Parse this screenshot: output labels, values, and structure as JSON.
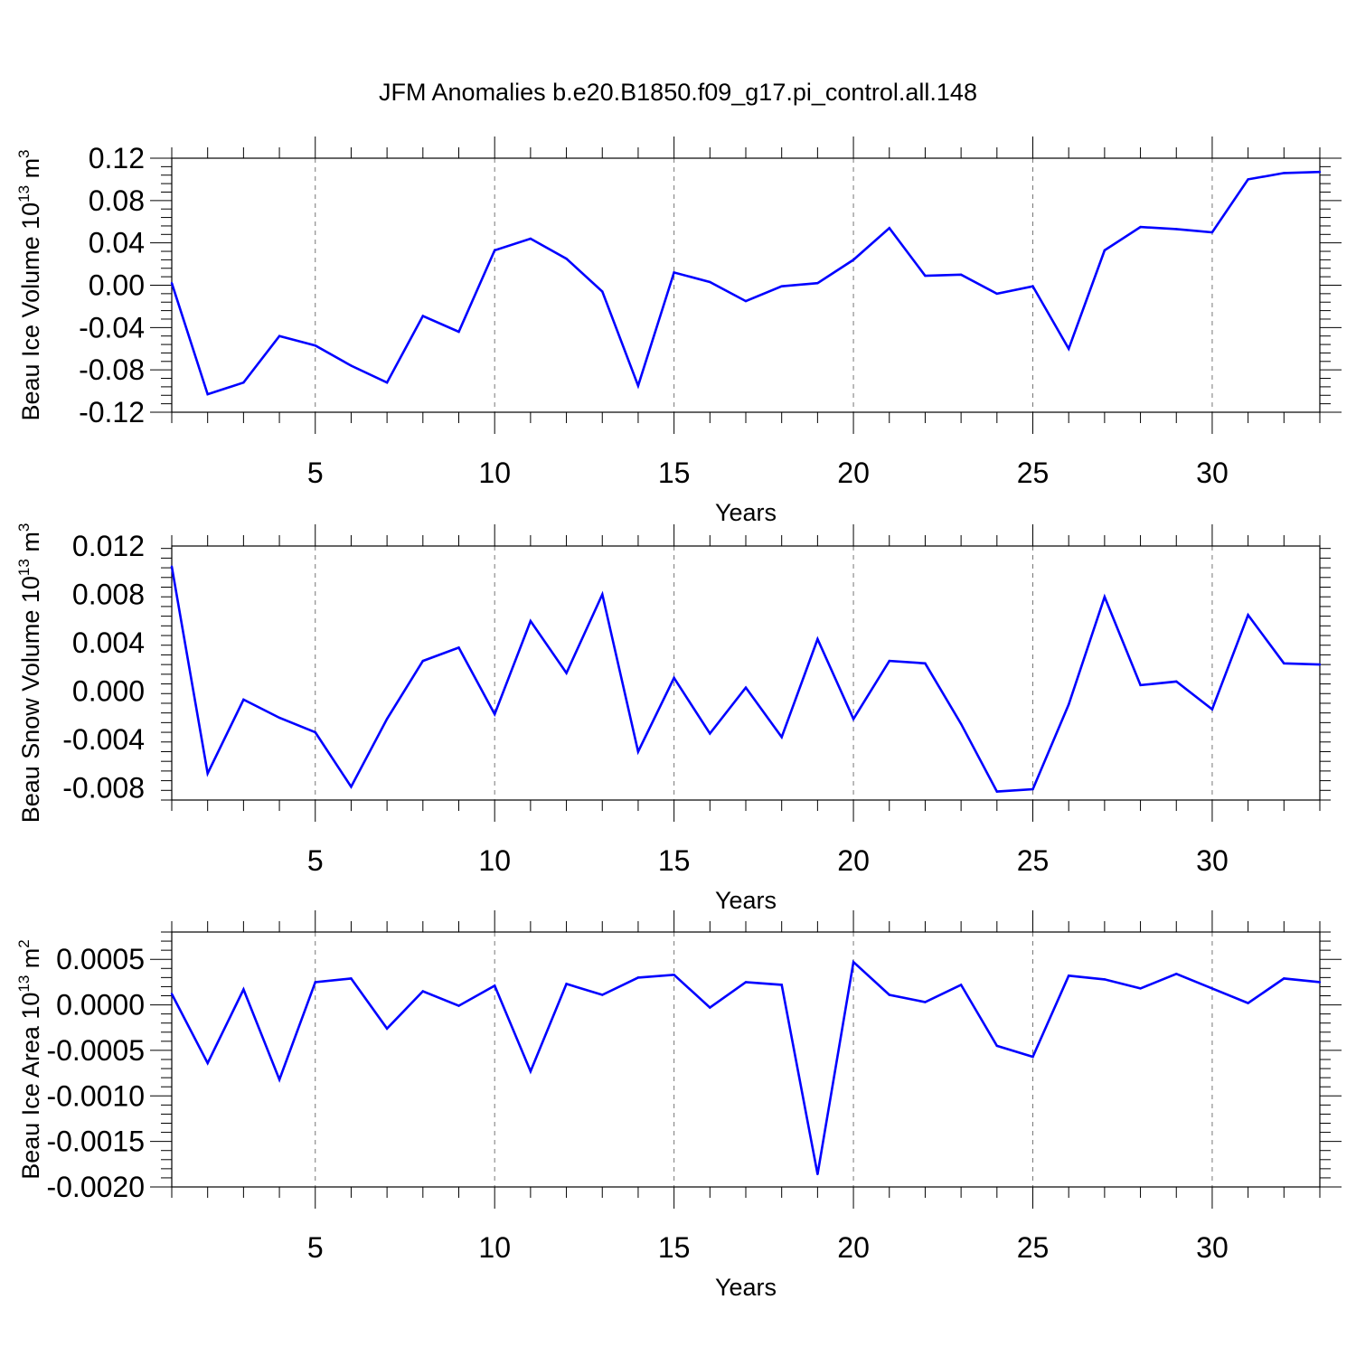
{
  "title": "JFM Anomalies b.e20.B1850.f09_g17.pi_control.all.148",
  "colors": {
    "line": "#0000ff",
    "grid": "#777777",
    "axes": "#000000"
  },
  "chart_data": [
    {
      "type": "line",
      "title": "JFM Anomalies b.e20.B1850.f09_g17.pi_control.all.148",
      "xlabel": "Years",
      "ylabel_base": "Beau Ice Volume 10",
      "ylabel_exp": "13",
      "ylabel_unit": " m",
      "ylabel_unit_exp": "3",
      "xlim": [
        1,
        33
      ],
      "ylim": [
        -0.12,
        0.12
      ],
      "xticks": [
        5,
        10,
        15,
        20,
        25,
        30
      ],
      "xtick_labels": [
        "5",
        "10",
        "15",
        "20",
        "25",
        "30"
      ],
      "yticks": [
        -0.12,
        -0.08,
        -0.04,
        0.0,
        0.04,
        0.08,
        0.12
      ],
      "ytick_labels": [
        "-0.12",
        "-0.08",
        "-0.04",
        "0.00",
        "0.04",
        "0.08",
        "0.12"
      ],
      "x": [
        1,
        2,
        3,
        4,
        5,
        6,
        7,
        8,
        9,
        10,
        11,
        12,
        13,
        14,
        15,
        16,
        17,
        18,
        19,
        20,
        21,
        22,
        23,
        24,
        25,
        26,
        27,
        28,
        29,
        30,
        31,
        32,
        33
      ],
      "series": [
        {
          "name": "Beau Ice Volume",
          "values": [
            0.002,
            -0.103,
            -0.092,
            -0.048,
            -0.057,
            -0.076,
            -0.092,
            -0.029,
            -0.044,
            0.033,
            0.044,
            0.025,
            -0.006,
            -0.095,
            0.012,
            0.003,
            -0.015,
            -0.001,
            0.002,
            0.024,
            0.054,
            0.009,
            0.01,
            -0.008,
            -0.001,
            -0.06,
            0.033,
            0.055,
            0.053,
            0.05,
            0.1,
            0.106,
            0.107
          ]
        }
      ]
    },
    {
      "type": "line",
      "xlabel": "Years",
      "ylabel_base": "Beau Snow Volume 10",
      "ylabel_exp": "13",
      "ylabel_unit": " m",
      "ylabel_unit_exp": "3",
      "xlim": [
        1,
        33
      ],
      "ylim": [
        -0.009,
        0.012
      ],
      "xticks": [
        5,
        10,
        15,
        20,
        25,
        30
      ],
      "xtick_labels": [
        "5",
        "10",
        "15",
        "20",
        "25",
        "30"
      ],
      "yticks": [
        -0.008,
        -0.004,
        0.0,
        0.004,
        0.008,
        0.012
      ],
      "ytick_labels": [
        "-0.008",
        "-0.004",
        "0.000",
        "0.004",
        "0.008",
        "0.012"
      ],
      "x": [
        1,
        2,
        3,
        4,
        5,
        6,
        7,
        8,
        9,
        10,
        11,
        12,
        13,
        14,
        15,
        16,
        17,
        18,
        19,
        20,
        21,
        22,
        23,
        24,
        25,
        26,
        27,
        28,
        29,
        30,
        31,
        32,
        33
      ],
      "series": [
        {
          "name": "Beau Snow Volume",
          "values": [
            0.0103,
            -0.0068,
            -0.0007,
            -0.0022,
            -0.0034,
            -0.0079,
            -0.0023,
            0.0025,
            0.0036,
            -0.0019,
            0.0058,
            0.0015,
            0.008,
            -0.005,
            0.0011,
            -0.0035,
            0.0003,
            -0.0038,
            0.0043,
            -0.0023,
            0.0025,
            0.0023,
            -0.0027,
            -0.0083,
            -0.0081,
            -0.0011,
            0.0078,
            0.0005,
            0.0008,
            -0.0015,
            0.0063,
            0.0023,
            0.0022
          ]
        }
      ]
    },
    {
      "type": "line",
      "xlabel": "Years",
      "ylabel_base": "Beau Ice Area 10",
      "ylabel_exp": "13",
      "ylabel_unit": " m",
      "ylabel_unit_exp": "2",
      "xlim": [
        1,
        33
      ],
      "ylim": [
        -0.002,
        0.0008
      ],
      "xticks": [
        5,
        10,
        15,
        20,
        25,
        30
      ],
      "xtick_labels": [
        "5",
        "10",
        "15",
        "20",
        "25",
        "30"
      ],
      "yticks": [
        -0.002,
        -0.0015,
        -0.001,
        -0.0005,
        0.0,
        0.0005
      ],
      "ytick_labels": [
        "-0.0020",
        "-0.0015",
        "-0.0010",
        "-0.0005",
        "0.0000",
        "0.0005"
      ],
      "x": [
        1,
        2,
        3,
        4,
        5,
        6,
        7,
        8,
        9,
        10,
        11,
        12,
        13,
        14,
        15,
        16,
        17,
        18,
        19,
        20,
        21,
        22,
        23,
        24,
        25,
        26,
        27,
        28,
        29,
        30,
        31,
        32,
        33
      ],
      "series": [
        {
          "name": "Beau Ice Area",
          "values": [
            0.00012,
            -0.00064,
            0.00017,
            -0.00082,
            0.00025,
            0.00029,
            -0.00026,
            0.00015,
            -1e-05,
            0.00021,
            -0.00073,
            0.00023,
            0.00011,
            0.0003,
            0.00033,
            -3e-05,
            0.00025,
            0.00022,
            -0.00186,
            0.00047,
            0.00011,
            3e-05,
            0.00022,
            -0.00045,
            -0.00057,
            0.00032,
            0.00028,
            0.00018,
            0.00034,
            0.00018,
            2e-05,
            0.00029,
            0.00025
          ]
        }
      ]
    }
  ]
}
